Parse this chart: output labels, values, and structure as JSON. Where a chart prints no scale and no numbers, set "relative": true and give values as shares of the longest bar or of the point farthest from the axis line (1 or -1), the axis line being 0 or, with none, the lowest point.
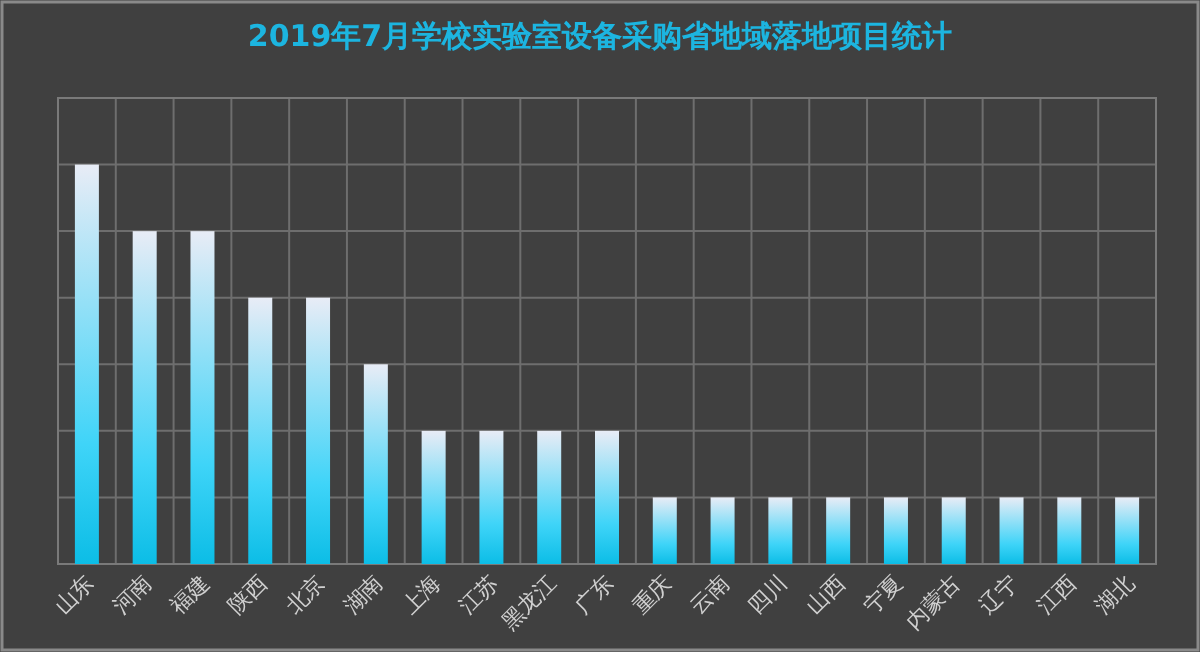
{
  "chart_data": {
    "type": "bar",
    "title": "2019年7月学校实验室设备采购省地域落地项目统计",
    "categories": [
      "山东",
      "河南",
      "福建",
      "陕西",
      "北京",
      "湖南",
      "上海",
      "江苏",
      "黑龙江",
      "广东",
      "重庆",
      "云南",
      "四川",
      "山西",
      "宁夏",
      "内蒙古",
      "辽宁",
      "江西",
      "湖北"
    ],
    "values": [
      1,
      0.8333,
      0.8333,
      0.6667,
      0.6667,
      0.5,
      0.3333,
      0.3333,
      0.3333,
      0.3333,
      0.1667,
      0.1667,
      0.1667,
      0.1667,
      0.1667,
      0.1667,
      0.1667,
      0.1667,
      0.1667
    ],
    "color": "#0cbde6",
    "relative": true,
    "grid": true
  }
}
